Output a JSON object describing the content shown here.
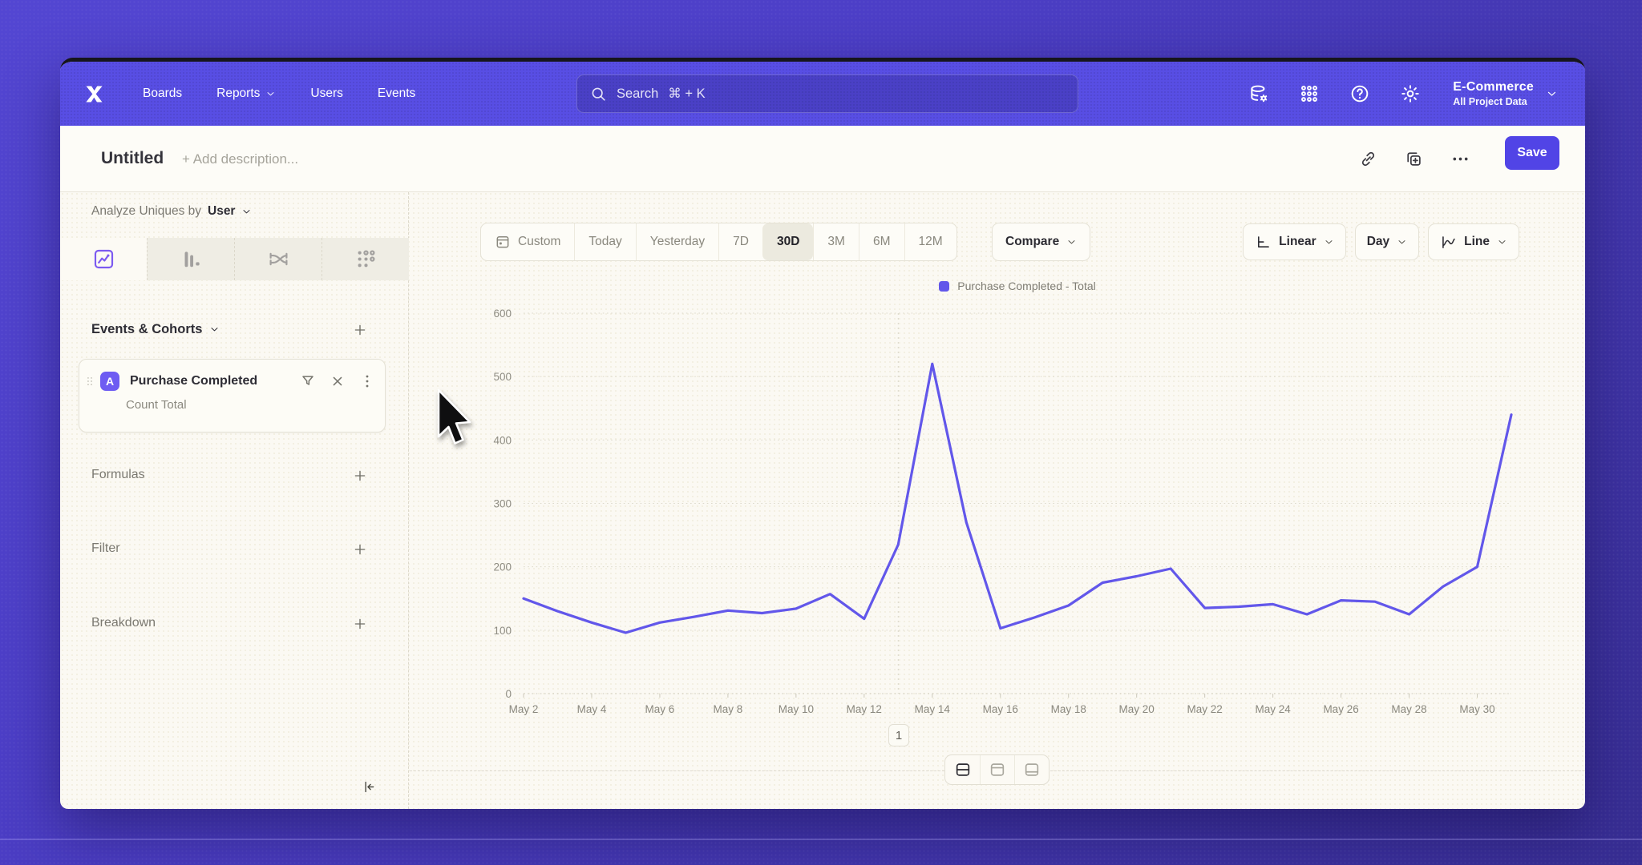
{
  "nav": {
    "logo_icon": "logo-x-icon",
    "items": [
      {
        "label": "Boards",
        "chevron": false
      },
      {
        "label": "Reports",
        "chevron": true
      },
      {
        "label": "Users",
        "chevron": false
      },
      {
        "label": "Events",
        "chevron": false
      }
    ],
    "search": {
      "placeholder": "Search",
      "shortcut": "⌘ + K"
    },
    "icons": [
      "data-settings-icon",
      "apps-grid-icon",
      "help-icon",
      "settings-gear-icon"
    ],
    "project": {
      "name": "E-Commerce",
      "subtitle": "All Project Data"
    }
  },
  "header": {
    "title": "Untitled",
    "description_placeholder": "+ Add description...",
    "icons": [
      "link-icon",
      "duplicate-icon",
      "more-icon"
    ],
    "save_label": "Save"
  },
  "sidebar": {
    "analyze_prefix": "Analyze Uniques by",
    "analyze_value": "User",
    "tabs": [
      {
        "icon": "insights-chart-icon",
        "active": true
      },
      {
        "icon": "bar-chart-icon",
        "active": false
      },
      {
        "icon": "flow-chart-icon",
        "active": false
      },
      {
        "icon": "retention-grid-icon",
        "active": false
      }
    ],
    "events_header": "Events & Cohorts",
    "event_card": {
      "badge": "A",
      "title": "Purchase Completed",
      "subtitle": "Count Total",
      "icons": [
        "filter-funnel-icon",
        "remove-icon",
        "kebab-icon"
      ]
    },
    "sections": [
      {
        "label": "Formulas"
      },
      {
        "label": "Filter"
      },
      {
        "label": "Breakdown"
      }
    ]
  },
  "toolbar": {
    "date_ranges": [
      {
        "label": "Custom",
        "icon": "calendar-icon",
        "active": false
      },
      {
        "label": "Today",
        "active": false
      },
      {
        "label": "Yesterday",
        "active": false
      },
      {
        "label": "7D",
        "active": false
      },
      {
        "label": "30D",
        "active": true
      },
      {
        "label": "3M",
        "active": false
      },
      {
        "label": "6M",
        "active": false
      },
      {
        "label": "12M",
        "active": false
      }
    ],
    "compare_label": "Compare",
    "view_controls": [
      {
        "label": "Linear",
        "icon": "axis-scale-icon"
      },
      {
        "label": "Day",
        "icon": null
      },
      {
        "label": "Line",
        "icon": "line-type-icon"
      }
    ]
  },
  "chart_data": {
    "type": "line",
    "title": "",
    "legend": [
      {
        "label": "Purchase Completed - Total",
        "color": "#6257ea"
      }
    ],
    "x": [
      "May 2",
      "May 3",
      "May 4",
      "May 5",
      "May 6",
      "May 7",
      "May 8",
      "May 9",
      "May 10",
      "May 11",
      "May 12",
      "May 13",
      "May 14",
      "May 15",
      "May 16",
      "May 17",
      "May 18",
      "May 19",
      "May 20",
      "May 21",
      "May 22",
      "May 23",
      "May 24",
      "May 25",
      "May 26",
      "May 27",
      "May 28",
      "May 29",
      "May 30",
      "May 31"
    ],
    "series": [
      {
        "name": "Purchase Completed - Total",
        "color": "#6257ea",
        "values": [
          150,
          130,
          112,
          96,
          112,
          121,
          131,
          127,
          134,
          157,
          118,
          235,
          520,
          270,
          103,
          120,
          139,
          175,
          185,
          197,
          135,
          137,
          141,
          125,
          147,
          145,
          125,
          169,
          200,
          440
        ]
      }
    ],
    "ylim": [
      0,
      600
    ],
    "yticks": [
      0,
      100,
      200,
      300,
      400,
      500,
      600
    ],
    "x_label_every": 2,
    "grid": "dotted-horizontal",
    "marker_x_index": 11,
    "legend_position": "top-center"
  },
  "pagination": {
    "page": "1"
  },
  "footer": {
    "toggles": [
      {
        "icon": "split-rows-icon",
        "active": true
      },
      {
        "icon": "panel-top-icon",
        "active": false
      },
      {
        "icon": "panel-bottom-icon",
        "active": false
      }
    ]
  }
}
